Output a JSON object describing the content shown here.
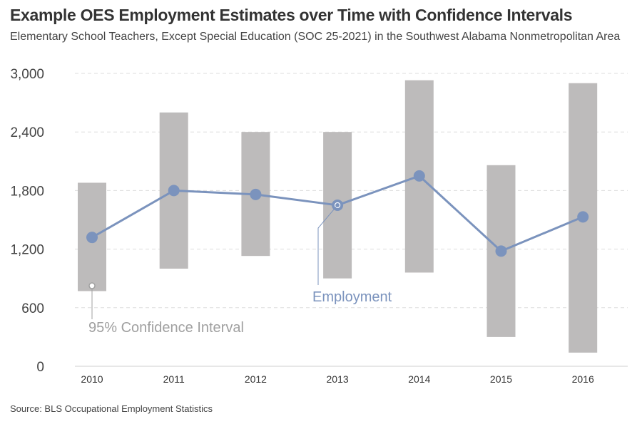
{
  "title": "Example OES Employment Estimates over Time with Confidence Intervals",
  "subtitle": "Elementary School Teachers, Except Special Education (SOC 25-2021) in the Southwest Alabama Nonmetropolitan Area",
  "source": "Source: BLS Occupational Employment Statistics",
  "colors": {
    "band": "#bdbbbb",
    "line": "#7b93bd",
    "grid": "#dddddd",
    "annotation": "#a0a0a0"
  },
  "chart_data": {
    "type": "line",
    "categories": [
      "2010",
      "2011",
      "2012",
      "2013",
      "2014",
      "2015",
      "2016"
    ],
    "series": [
      {
        "name": "Employment",
        "values": [
          1320,
          1800,
          1760,
          1650,
          1950,
          1180,
          1530
        ]
      }
    ],
    "intervals": {
      "name": "95% Confidence Interval",
      "low": [
        770,
        1000,
        1130,
        900,
        960,
        300,
        140
      ],
      "high": [
        1880,
        2600,
        2400,
        2400,
        2930,
        2060,
        2900
      ]
    },
    "ylim": [
      0,
      3000
    ],
    "yticks": [
      0,
      600,
      1200,
      1800,
      2400,
      3000
    ],
    "ytick_labels": [
      "0",
      "600",
      "1,200",
      "1,800",
      "2,400",
      "3,000"
    ],
    "grid": true,
    "xlabel": "",
    "ylabel": "",
    "annotations": [
      "Employment",
      "95% Confidence Interval"
    ]
  }
}
